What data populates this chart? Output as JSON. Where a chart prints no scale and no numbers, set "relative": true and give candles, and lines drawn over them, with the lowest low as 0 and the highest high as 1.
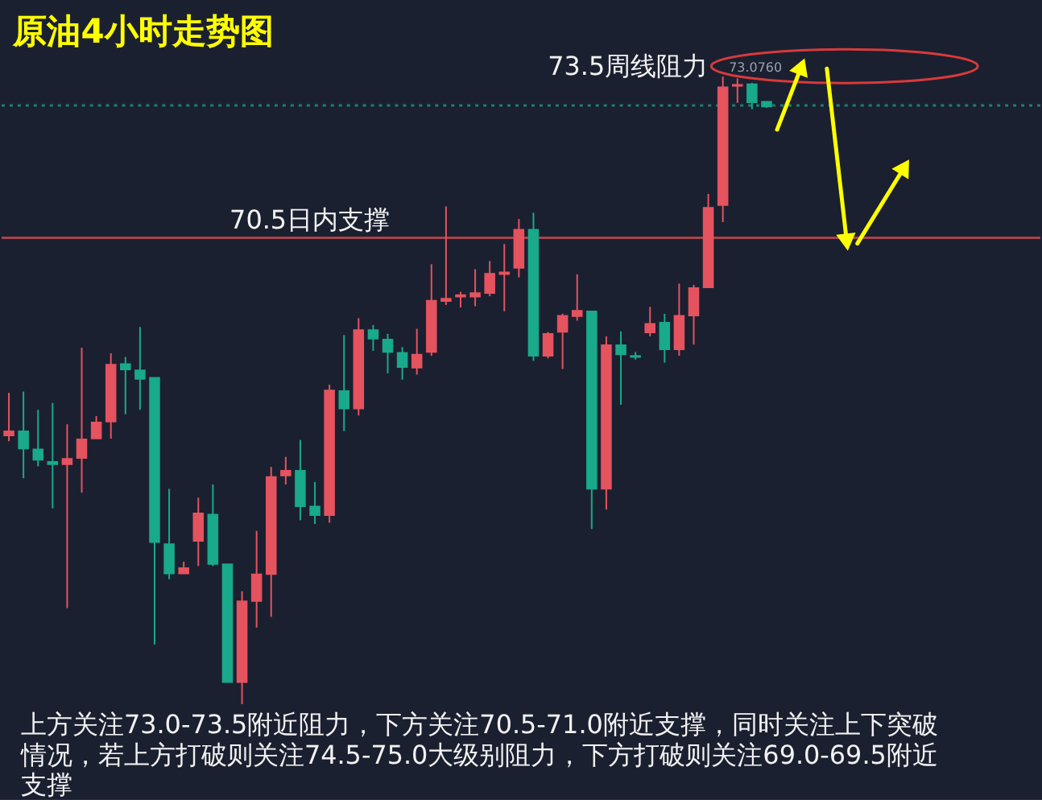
{
  "chart_data": {
    "type": "candlestick",
    "title": "原油4小时走势图",
    "relative": true,
    "categories": [
      null,
      null,
      null,
      null,
      null,
      null,
      null,
      null,
      null,
      null,
      null,
      null,
      null,
      null,
      null,
      null,
      null,
      null,
      null,
      null,
      null,
      null,
      null,
      null,
      null,
      null,
      null,
      null,
      null,
      null,
      null,
      null,
      null,
      null,
      null,
      null,
      null,
      null,
      null,
      null,
      null,
      null,
      null,
      null,
      null,
      null,
      null,
      null,
      null,
      null,
      null,
      null,
      null
    ],
    "ohlc": [
      [
        0.428,
        0.496,
        0.419,
        0.435
      ],
      [
        0.435,
        0.498,
        0.36,
        0.407
      ],
      [
        0.406,
        0.469,
        0.379,
        0.389
      ],
      [
        0.386,
        0.48,
        0.312,
        0.382
      ],
      [
        0.382,
        0.446,
        0.153,
        0.391
      ],
      [
        0.392,
        0.568,
        0.337,
        0.422
      ],
      [
        0.423,
        0.459,
        0.423,
        0.449
      ],
      [
        0.45,
        0.559,
        0.423,
        0.541
      ],
      [
        0.542,
        0.553,
        0.462,
        0.533
      ],
      [
        0.532,
        0.601,
        0.469,
        0.518
      ],
      [
        0.52,
        0.52,
        0.095,
        0.258
      ],
      [
        0.255,
        0.343,
        0.199,
        0.208
      ],
      [
        0.208,
        0.227,
        0.208,
        0.217
      ],
      [
        0.26,
        0.329,
        0.22,
        0.304
      ],
      [
        0.302,
        0.35,
        0.22,
        0.223
      ],
      [
        0.223,
        0.223,
        0.035,
        0.035
      ],
      [
        0.035,
        0.18,
        0,
        0.164
      ],
      [
        0.164,
        0.276,
        0.122,
        0.207
      ],
      [
        0.207,
        0.378,
        0.139,
        0.362
      ],
      [
        0.364,
        0.394,
        0.35,
        0.372
      ],
      [
        0.372,
        0.421,
        0.293,
        0.315
      ],
      [
        0.315,
        0.354,
        0.287,
        0.301
      ],
      [
        0.301,
        0.509,
        0.289,
        0.5
      ],
      [
        0.499,
        0.588,
        0.435,
        0.471
      ],
      [
        0.471,
        0.615,
        0.46,
        0.596
      ],
      [
        0.596,
        0.604,
        0.563,
        0.582
      ],
      [
        0.581,
        0.59,
        0.527,
        0.561
      ],
      [
        0.56,
        0.569,
        0.517,
        0.537
      ],
      [
        0.536,
        0.598,
        0.525,
        0.557
      ],
      [
        0.561,
        0.701,
        0.555,
        0.643
      ],
      [
        0.642,
        0.793,
        0.636,
        0.646
      ],
      [
        0.649,
        0.657,
        0.632,
        0.652
      ],
      [
        0.649,
        0.693,
        0.634,
        0.655
      ],
      [
        0.655,
        0.706,
        0.65,
        0.686
      ],
      [
        0.685,
        0.733,
        0.626,
        0.688
      ],
      [
        0.695,
        0.773,
        0.68,
        0.756
      ],
      [
        0.756,
        0.783,
        0.547,
        0.555
      ],
      [
        0.555,
        0.593,
        0.551,
        0.59
      ],
      [
        0.593,
        0.622,
        0.534,
        0.619
      ],
      [
        0.618,
        0.685,
        0.611,
        0.627
      ],
      [
        0.626,
        0.626,
        0.279,
        0.343
      ],
      [
        0.343,
        0.586,
        0.31,
        0.572
      ],
      [
        0.572,
        0.594,
        0.477,
        0.557
      ],
      [
        0.555,
        0.561,
        0.549,
        0.553
      ],
      [
        0.592,
        0.633,
        0.586,
        0.606
      ],
      [
        0.608,
        0.622,
        0.544,
        0.565
      ],
      [
        0.565,
        0.67,
        0.555,
        0.619
      ],
      [
        0.619,
        0.668,
        0.573,
        0.663
      ],
      [
        0.664,
        0.813,
        0.663,
        0.791
      ],
      [
        0.795,
        1,
        0.768,
        0.983
      ],
      [
        0.985,
        0.997,
        0.958,
        0.987
      ],
      [
        0.988,
        0.99,
        0.948,
        0.959
      ],
      [
        0.96,
        0.96,
        0.95,
        0.952
      ]
    ],
    "colors": [
      "#e5535f",
      "#19a98b",
      "#19a98b",
      "#19a98b",
      "#e5535f",
      "#e5535f",
      "#e5535f",
      "#e5535f",
      "#19a98b",
      "#19a98b",
      "#19a98b",
      "#19a98b",
      "#e5535f",
      "#e5535f",
      "#19a98b",
      "#19a98b",
      "#e5535f",
      "#e5535f",
      "#e5535f",
      "#e5535f",
      "#19a98b",
      "#19a98b",
      "#e5535f",
      "#19a98b",
      "#e5535f",
      "#19a98b",
      "#19a98b",
      "#19a98b",
      "#e5535f",
      "#e5535f",
      "#e5535f",
      "#e5535f",
      "#e5535f",
      "#e5535f",
      "#e5535f",
      "#e5535f",
      "#19a98b",
      "#e5535f",
      "#e5535f",
      "#e5535f",
      "#19a98b",
      "#e5535f",
      "#19a98b",
      "#19a98b",
      "#e5535f",
      "#19a98b",
      "#e5535f",
      "#e5535f",
      "#e5535f",
      "#e5535f",
      "#e5535f",
      "#19a98b",
      "#19a98b"
    ],
    "tick_labels": false,
    "ref_lines": [
      {
        "axis": "y",
        "value": 0.743,
        "label": "70.5日内支撑",
        "color": "#a9434b"
      },
      {
        "axis": "y",
        "value": 0.954,
        "color": "#1f7f70",
        "line_style": "dotted"
      }
    ],
    "annotations": [
      "73.5周线阻力",
      "73.0760",
      "上方关注73.0-73.5附近阻力，下方关注70.5-71.0附近支撑，同时关注上下突破情况，若上方打破则关注74.5-75.0大级别阻力，下方打破则关注69.0-69.5附近支撑"
    ]
  }
}
